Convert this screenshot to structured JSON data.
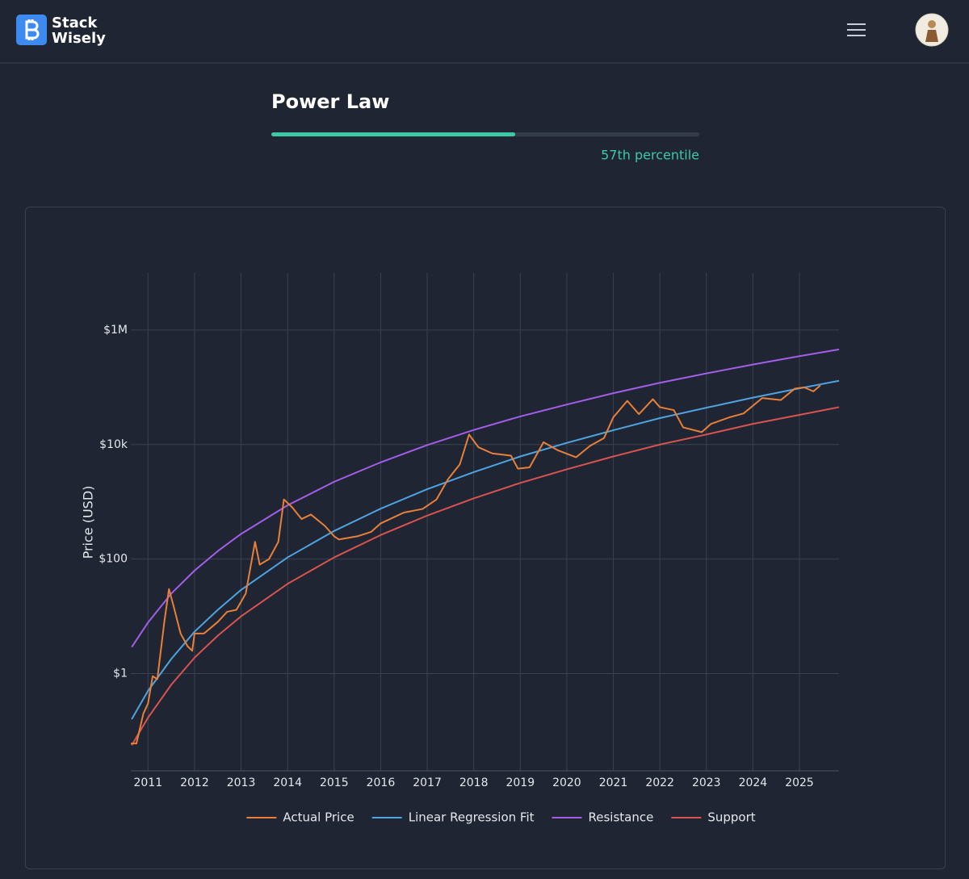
{
  "header": {
    "brand_lines": [
      "Stack",
      "Wisely"
    ]
  },
  "metric": {
    "title": "Power Law",
    "percentile": 57,
    "percentile_label": "57th percentile"
  },
  "chart_data": {
    "type": "line",
    "y_label": "Price (USD)",
    "log_y": true,
    "grid": true,
    "legend": "bottom",
    "xlim": [
      2010.63,
      2025.85
    ],
    "xticks": [
      2011,
      2012,
      2013,
      2014,
      2015,
      2016,
      2017,
      2018,
      2019,
      2020,
      2021,
      2022,
      2023,
      2024,
      2025
    ],
    "ylim": [
      0.02,
      10000000
    ],
    "yticks": [
      {
        "value": 1,
        "label": "$1"
      },
      {
        "value": 100,
        "label": "$100"
      },
      {
        "value": 10000,
        "label": "$10k"
      },
      {
        "value": 1000000,
        "label": "$1M"
      }
    ],
    "series": [
      {
        "name": "Actual Price",
        "color": "#e8803a",
        "x": [
          2010.63,
          2010.75,
          2010.9,
          2011.0,
          2011.1,
          2011.2,
          2011.35,
          2011.45,
          2011.55,
          2011.7,
          2011.85,
          2011.95,
          2012.0,
          2012.2,
          2012.5,
          2012.7,
          2012.9,
          2013.1,
          2013.3,
          2013.4,
          2013.6,
          2013.8,
          2013.92,
          2014.1,
          2014.3,
          2014.5,
          2014.8,
          2015.0,
          2015.1,
          2015.5,
          2015.8,
          2016.0,
          2016.5,
          2016.9,
          2017.2,
          2017.45,
          2017.7,
          2017.9,
          2018.1,
          2018.4,
          2018.8,
          2018.95,
          2019.2,
          2019.5,
          2019.8,
          2020.2,
          2020.5,
          2020.8,
          2021.0,
          2021.3,
          2021.55,
          2021.85,
          2022.0,
          2022.3,
          2022.5,
          2022.9,
          2023.1,
          2023.5,
          2023.8,
          2024.2,
          2024.6,
          2024.9,
          2025.1,
          2025.3,
          2025.45
        ],
        "values": [
          0.06,
          0.06,
          0.2,
          0.3,
          0.9,
          0.8,
          8,
          30,
          15,
          5,
          3,
          2.5,
          5,
          5,
          8,
          12,
          13,
          25,
          200,
          80,
          100,
          200,
          1100,
          800,
          500,
          600,
          380,
          250,
          220,
          250,
          300,
          420,
          650,
          750,
          1100,
          2500,
          4500,
          15000,
          9000,
          7000,
          6400,
          3800,
          4000,
          11000,
          8000,
          6000,
          9500,
          13000,
          30000,
          58000,
          34000,
          62000,
          45000,
          40000,
          20000,
          16500,
          23000,
          30000,
          35000,
          65000,
          60000,
          95000,
          100000,
          85000,
          108000
        ]
      },
      {
        "name": "Linear Regression Fit",
        "color": "#4ea3e0",
        "x": [
          2010.65,
          2011,
          2011.5,
          2012,
          2012.5,
          2013,
          2014,
          2015,
          2016,
          2017,
          2018,
          2019,
          2020,
          2021,
          2022,
          2023,
          2024,
          2025,
          2025.85
        ],
        "values": [
          0.16,
          0.5,
          1.8,
          5.4,
          13,
          29,
          107,
          310,
          760,
          1660,
          3300,
          6200,
          10700,
          17800,
          29000,
          44000,
          66000,
          96000,
          130000
        ]
      },
      {
        "name": "Resistance",
        "color": "#a35ee8",
        "x": [
          2010.65,
          2011,
          2011.5,
          2012,
          2012.5,
          2013,
          2014,
          2015,
          2016,
          2017,
          2018,
          2019,
          2020,
          2021,
          2022,
          2023,
          2024,
          2025,
          2025.85
        ],
        "values": [
          2.9,
          7.8,
          25,
          63,
          138,
          275,
          870,
          2240,
          4900,
          9800,
          18000,
          31000,
          50000,
          79000,
          120000,
          175000,
          250000,
          350000,
          460000
        ]
      },
      {
        "name": "Support",
        "color": "#d9534f",
        "x": [
          2010.65,
          2011,
          2011.5,
          2012,
          2012.5,
          2013,
          2014,
          2015,
          2016,
          2017,
          2018,
          2019,
          2020,
          2021,
          2022,
          2023,
          2024,
          2025,
          2025.85
        ],
        "values": [
          0.056,
          0.17,
          0.64,
          1.9,
          4.6,
          10,
          37,
          107,
          263,
          575,
          1150,
          2140,
          3700,
          6200,
          10000,
          15000,
          23000,
          33000,
          45000
        ]
      }
    ]
  }
}
